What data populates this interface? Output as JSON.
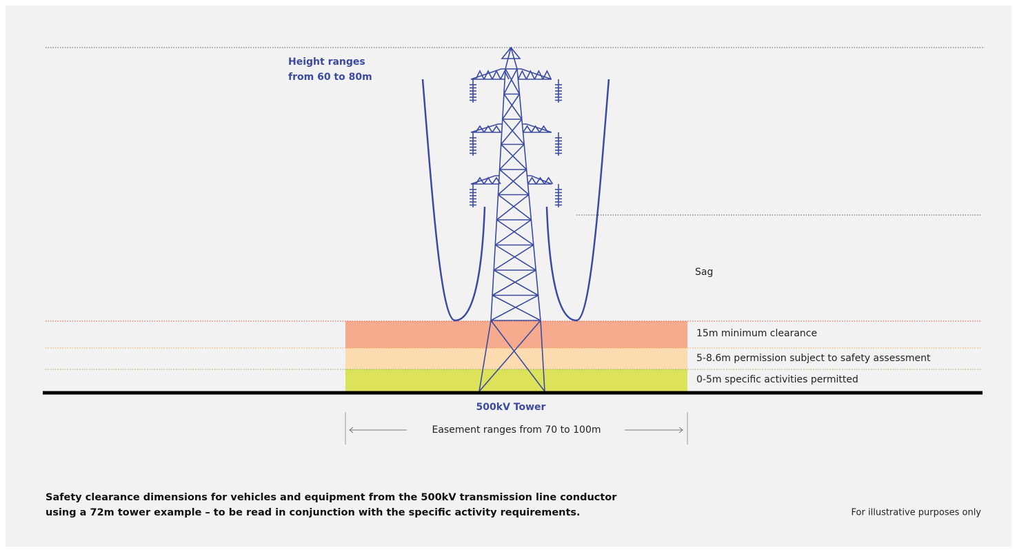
{
  "height_label": [
    "Height ranges",
    "from 60 to 80m"
  ],
  "sag_label": "Sag",
  "zones": [
    "15m minimum clearance",
    "5-8.6m permission subject to safety assessment",
    "0-5m specific activities permitted"
  ],
  "tower_label": "500kV Tower",
  "easement_label": "Easement ranges from 70 to 100m",
  "caption": [
    "Safety clearance dimensions for vehicles and equipment from the 500kV transmission line conductor",
    "using a 72m tower example – to be read in conjunction with the specific activity requirements."
  ],
  "note": "For illustrative purposes only"
}
